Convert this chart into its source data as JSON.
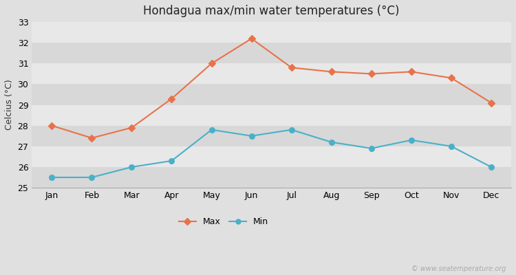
{
  "title": "Hondagua max/min water temperatures (°C)",
  "ylabel": "Celcius (°C)",
  "months": [
    "Jan",
    "Feb",
    "Mar",
    "Apr",
    "May",
    "Jun",
    "Jul",
    "Aug",
    "Sep",
    "Oct",
    "Nov",
    "Dec"
  ],
  "max_temps": [
    28.0,
    27.4,
    27.9,
    29.3,
    31.0,
    32.2,
    30.8,
    30.6,
    30.5,
    30.6,
    30.3,
    29.1
  ],
  "min_temps": [
    25.5,
    25.5,
    26.0,
    26.3,
    27.8,
    27.5,
    27.8,
    27.2,
    26.9,
    27.3,
    27.0,
    26.0
  ],
  "max_color": "#e8724a",
  "min_color": "#4ab0c8",
  "ylim": [
    25,
    33
  ],
  "yticks": [
    25,
    26,
    27,
    28,
    29,
    30,
    31,
    32,
    33
  ],
  "bg_color": "#e0e0e0",
  "plot_bg_color_dark": "#d8d8d8",
  "plot_bg_color_light": "#e8e8e8",
  "grid_color": "#ffffff",
  "watermark": "© www.seatemperature.org",
  "title_fontsize": 12,
  "label_fontsize": 9,
  "tick_fontsize": 9
}
